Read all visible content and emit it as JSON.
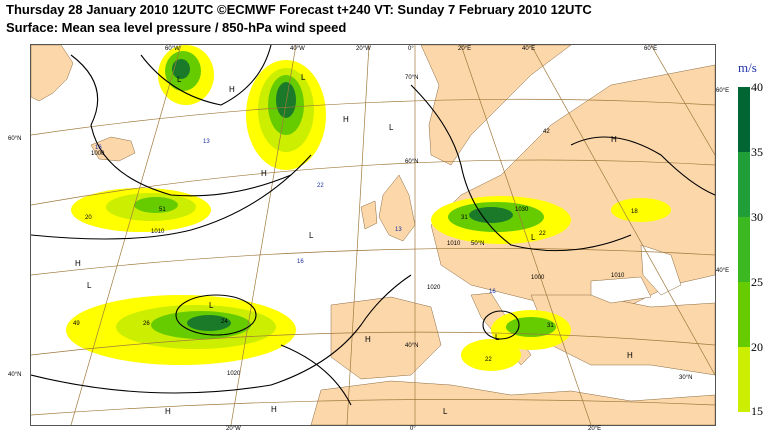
{
  "title_line1": "Thursday 28 January 2010 12UTC ©ECMWF Forecast t+240 VT: Sunday 7 February 2010 12UTC",
  "title_line2": "Surface: Mean sea level pressure / 850-hPa wind speed",
  "legend": {
    "unit": "m/s",
    "ticks": [
      "40",
      "35",
      "30",
      "25",
      "20",
      "15"
    ],
    "colors": [
      "#006633",
      "#1f9e3a",
      "#3cb820",
      "#66cc00",
      "#ccee00",
      "#ffff00"
    ]
  },
  "colors": {
    "land": "#fcd7aa",
    "sea": "#ffffff",
    "grid": "#a07a3c",
    "isobar": "#000000",
    "wind_strong": "#1a7a2a",
    "wind_weak": "#ffff00"
  },
  "pressure_centres": [
    "H",
    "H",
    "H",
    "H",
    "H",
    "H",
    "H",
    "H",
    "H",
    "L",
    "L",
    "L",
    "L",
    "L",
    "L",
    "L",
    "L",
    "L"
  ],
  "isobar_labels": [
    "1010",
    "1000",
    "1020",
    "1030",
    "1020",
    "1010",
    "1000",
    "1010"
  ],
  "wind_maxima": [
    "16",
    "13",
    "20",
    "51",
    "26",
    "24",
    "49",
    "16",
    "22",
    "13",
    "31",
    "42",
    "22",
    "16",
    "18",
    "22",
    "31"
  ],
  "grid_labels": {
    "lon_top": [
      "60°W",
      "40°W",
      "20°W",
      "0°",
      "20°E",
      "40°E",
      "60°E"
    ],
    "lon_bottom": [
      "20°W",
      "0°",
      "20°E"
    ],
    "lat_left": [
      "60°N",
      "40°N"
    ],
    "lat_right": [
      "60°E",
      "40°E"
    ],
    "lat_inner": [
      "70°N",
      "60°N",
      "50°N",
      "40°N",
      "30°N"
    ]
  }
}
